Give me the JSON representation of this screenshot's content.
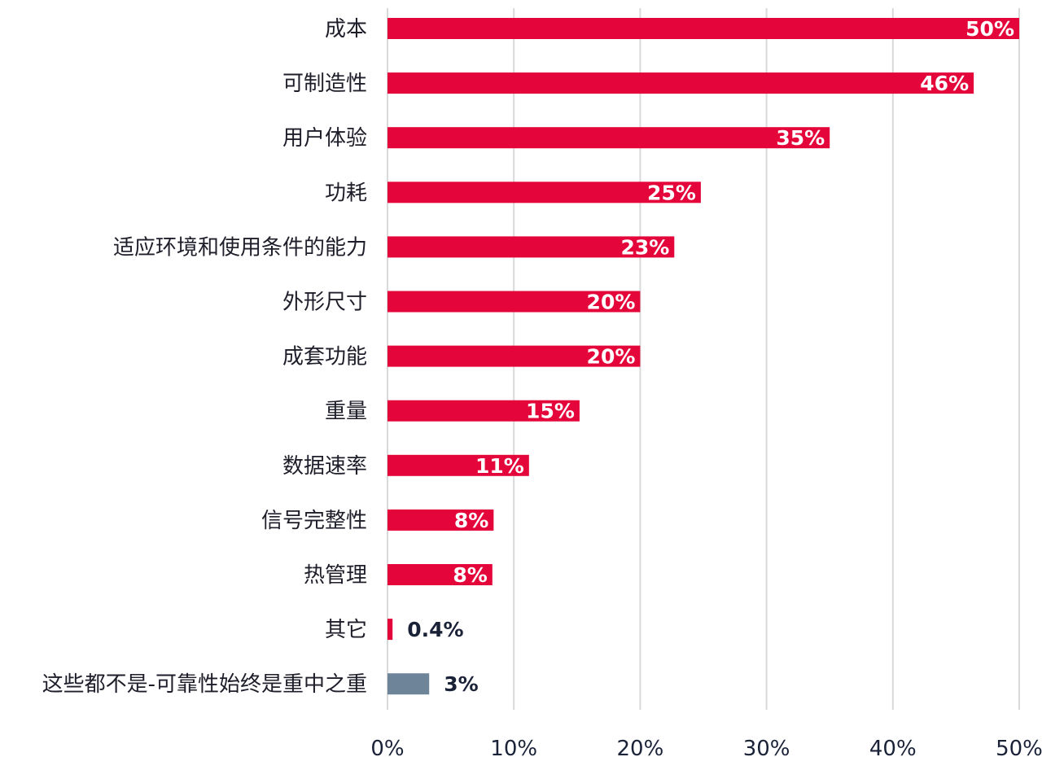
{
  "colors": {
    "accent": "#e4063a",
    "other": "#6e8499",
    "grid": "#d9d9d9",
    "label_text": "#1e1e2a",
    "axis_text": "#1a2238"
  },
  "chart_data": {
    "type": "bar",
    "orientation": "horizontal",
    "title": "",
    "xlabel": "",
    "ylabel": "",
    "xlim": [
      0,
      50
    ],
    "x_ticks": [
      "0%",
      "10%",
      "20%",
      "30%",
      "40%",
      "50%"
    ],
    "grid": true,
    "legend": "none",
    "categories": [
      "成本",
      "可制造性",
      "用户体验",
      "功耗",
      "适应环境和使用条件的能力",
      "外形尺寸",
      "成套功能",
      "重量",
      "数据速率",
      "信号完整性",
      "热管理",
      "其它",
      "这些都不是-可靠性始终是重中之重"
    ],
    "values": [
      50,
      46.4,
      35,
      24.8,
      22.7,
      20,
      20,
      15.2,
      11.2,
      8.4,
      8.3,
      0.4,
      3.3
    ],
    "data_labels": [
      "50%",
      "46%",
      "35%",
      "25%",
      "23%",
      "20%",
      "20%",
      "15%",
      "11%",
      "8%",
      "8%",
      "0.4%",
      "3%"
    ],
    "bar_colors": [
      "accent",
      "accent",
      "accent",
      "accent",
      "accent",
      "accent",
      "accent",
      "accent",
      "accent",
      "accent",
      "accent",
      "accent",
      "other"
    ]
  }
}
